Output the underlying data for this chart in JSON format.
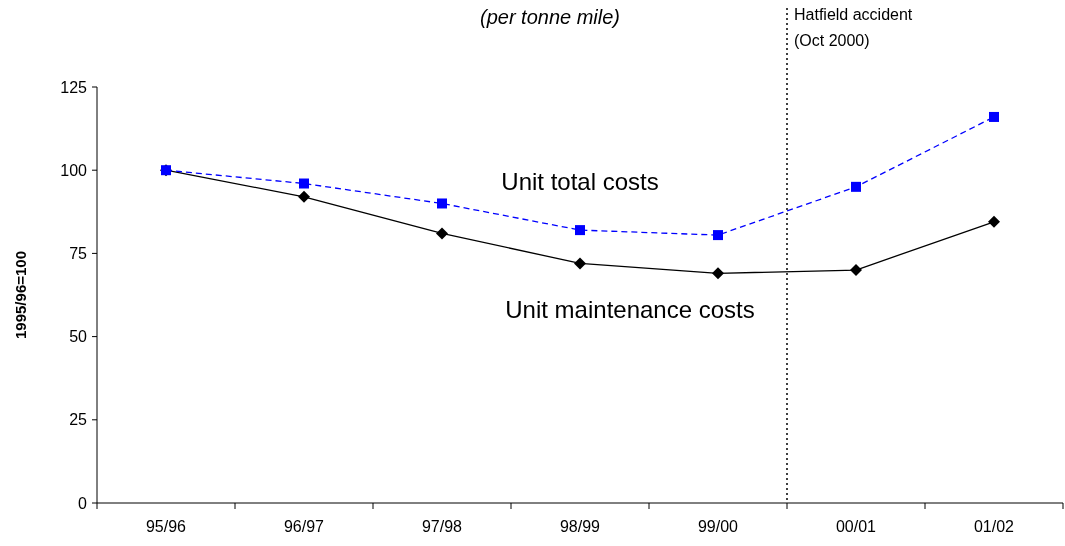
{
  "chart_data": {
    "type": "line",
    "title": "(per tonne mile)",
    "ylabel": "1995/96=100",
    "categories": [
      "95/96",
      "96/97",
      "97/98",
      "98/99",
      "99/00",
      "00/01",
      "01/02"
    ],
    "series": [
      {
        "name": "Unit total costs",
        "color": "#0000ff",
        "marker": "square",
        "line_style": "dashed",
        "values": [
          100,
          96,
          90,
          82,
          80.5,
          95,
          116
        ]
      },
      {
        "name": "Unit maintenance costs",
        "color": "#000000",
        "marker": "diamond",
        "line_style": "solid",
        "values": [
          100,
          92,
          81,
          72,
          69,
          70,
          84.5
        ]
      }
    ],
    "ylim": [
      0,
      125
    ],
    "yticks": [
      0,
      25,
      50,
      75,
      100,
      125
    ],
    "grid": false,
    "annotations": [
      "Hatfield accident (Oct 2000)"
    ]
  }
}
